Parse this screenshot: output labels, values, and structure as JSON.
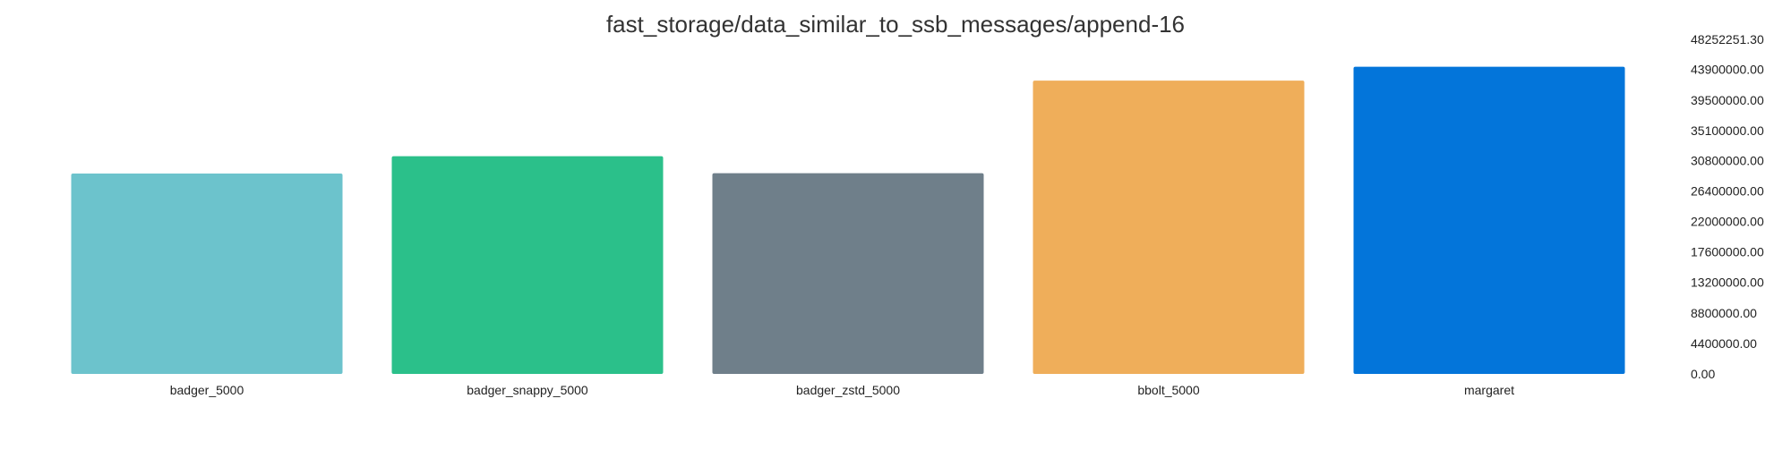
{
  "chart_data": {
    "type": "bar",
    "title": "fast_storage/data_similar_to_ssb_messages/append-16",
    "xlabel": "",
    "ylabel": "",
    "categories": [
      "badger_5000",
      "badger_snappy_5000",
      "badger_zstd_5000",
      "bbolt_5000",
      "margaret"
    ],
    "values": [
      28900000,
      31400000,
      28950000,
      42300000,
      44300000
    ],
    "colors": [
      "#6cc3cc",
      "#2bc08a",
      "#6f7f8a",
      "#efae5a",
      "#0375da"
    ],
    "ylim": [
      0,
      48252251.3
    ],
    "y_ticks": [
      "0.00",
      "4400000.00",
      "8800000.00",
      "13200000.00",
      "17600000.00",
      "22000000.00",
      "26400000.00",
      "30800000.00",
      "35100000.00",
      "39500000.00",
      "43900000.00",
      "48252251.30"
    ],
    "y_tick_values": [
      0,
      4400000,
      8800000,
      13200000,
      17600000,
      22000000,
      26400000,
      30800000,
      35100000,
      39500000,
      43900000,
      48252251.3
    ],
    "y_axis_side": "right",
    "grid": false,
    "legend": "none"
  }
}
